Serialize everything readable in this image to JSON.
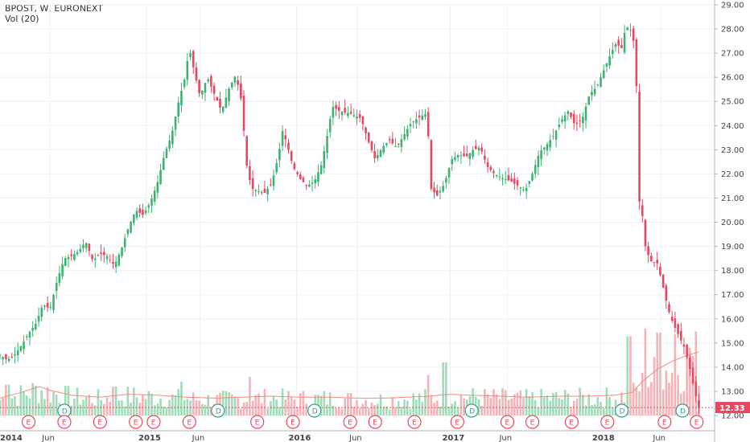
{
  "header": {
    "symbol_line": "BPOST, W, EURONEXT",
    "indicator_line": "Vol (20)"
  },
  "colors": {
    "up": "#3cb371",
    "down": "#e8475f",
    "vol_up": "#9fdcb8",
    "vol_down": "#f5b3b8",
    "vol_ma": "#f08a80",
    "grid": "#eef0f2",
    "price_line": "#e8475f",
    "tag": "#e8475f"
  },
  "current_price": {
    "label": "12.33",
    "value": 12.33
  },
  "chart_data": {
    "type": "candlestick",
    "title": "BPOST, W, EURONEXT",
    "indicator": "Vol (20)",
    "ylim": [
      12.0,
      29.0
    ],
    "y_ticks": [
      "29.00",
      "28.00",
      "27.00",
      "26.00",
      "25.00",
      "24.00",
      "23.00",
      "22.00",
      "21.00",
      "20.00",
      "19.00",
      "18.00",
      "17.00",
      "16.00",
      "15.00",
      "14.00",
      "13.00",
      "12.00"
    ],
    "x_ticks": [
      {
        "label": "2014",
        "bold": true,
        "t": -0.015
      },
      {
        "label": "Jun",
        "bold": false,
        "t": 0.07
      },
      {
        "label": "2015",
        "bold": true,
        "t": 0.205
      },
      {
        "label": "Jun",
        "bold": false,
        "t": 0.28
      },
      {
        "label": "2016",
        "bold": true,
        "t": 0.415
      },
      {
        "label": "Jun",
        "bold": false,
        "t": 0.5
      },
      {
        "label": "2017",
        "bold": true,
        "t": 0.63
      },
      {
        "label": "Jun",
        "bold": false,
        "t": 0.71
      },
      {
        "label": "2018",
        "bold": true,
        "t": 0.84
      },
      {
        "label": "Jun",
        "bold": false,
        "t": 0.925
      }
    ],
    "price_path": [
      [
        0.0,
        14.5
      ],
      [
        0.01,
        14.3
      ],
      [
        0.02,
        14.5
      ],
      [
        0.03,
        14.9
      ],
      [
        0.04,
        15.4
      ],
      [
        0.05,
        15.8
      ],
      [
        0.06,
        16.6
      ],
      [
        0.07,
        16.4
      ],
      [
        0.08,
        17.6
      ],
      [
        0.09,
        18.5
      ],
      [
        0.1,
        18.6
      ],
      [
        0.11,
        18.8
      ],
      [
        0.12,
        19.2
      ],
      [
        0.13,
        18.4
      ],
      [
        0.14,
        18.7
      ],
      [
        0.15,
        18.6
      ],
      [
        0.16,
        18.2
      ],
      [
        0.17,
        18.9
      ],
      [
        0.18,
        19.8
      ],
      [
        0.19,
        20.5
      ],
      [
        0.2,
        20.3
      ],
      [
        0.21,
        20.8
      ],
      [
        0.22,
        21.6
      ],
      [
        0.23,
        22.8
      ],
      [
        0.24,
        23.6
      ],
      [
        0.25,
        25.0
      ],
      [
        0.258,
        25.9
      ],
      [
        0.265,
        27.2
      ],
      [
        0.272,
        26.2
      ],
      [
        0.28,
        25.2
      ],
      [
        0.29,
        26.0
      ],
      [
        0.3,
        25.3
      ],
      [
        0.31,
        24.6
      ],
      [
        0.32,
        25.5
      ],
      [
        0.33,
        26.1
      ],
      [
        0.338,
        25.0
      ],
      [
        0.345,
        22.4
      ],
      [
        0.352,
        21.4
      ],
      [
        0.36,
        21.3
      ],
      [
        0.37,
        21.2
      ],
      [
        0.38,
        21.6
      ],
      [
        0.39,
        22.8
      ],
      [
        0.395,
        23.8
      ],
      [
        0.4,
        23.4
      ],
      [
        0.41,
        22.3
      ],
      [
        0.42,
        21.8
      ],
      [
        0.43,
        21.5
      ],
      [
        0.44,
        21.7
      ],
      [
        0.45,
        22.4
      ],
      [
        0.458,
        23.6
      ],
      [
        0.465,
        24.8
      ],
      [
        0.475,
        24.6
      ],
      [
        0.49,
        24.5
      ],
      [
        0.505,
        24.3
      ],
      [
        0.515,
        23.4
      ],
      [
        0.525,
        22.6
      ],
      [
        0.535,
        23.1
      ],
      [
        0.545,
        23.4
      ],
      [
        0.555,
        23.1
      ],
      [
        0.565,
        23.6
      ],
      [
        0.575,
        24.1
      ],
      [
        0.585,
        24.3
      ],
      [
        0.595,
        24.5
      ],
      [
        0.6,
        23.4
      ],
      [
        0.603,
        21.4
      ],
      [
        0.612,
        21.1
      ],
      [
        0.622,
        21.6
      ],
      [
        0.632,
        22.6
      ],
      [
        0.642,
        22.8
      ],
      [
        0.652,
        22.7
      ],
      [
        0.662,
        23.0
      ],
      [
        0.672,
        23.1
      ],
      [
        0.682,
        22.3
      ],
      [
        0.692,
        22.0
      ],
      [
        0.705,
        21.8
      ],
      [
        0.715,
        21.7
      ],
      [
        0.725,
        21.5
      ],
      [
        0.735,
        21.3
      ],
      [
        0.745,
        22.0
      ],
      [
        0.755,
        22.9
      ],
      [
        0.765,
        23.2
      ],
      [
        0.775,
        23.6
      ],
      [
        0.785,
        24.2
      ],
      [
        0.795,
        24.6
      ],
      [
        0.805,
        24.0
      ],
      [
        0.815,
        24.3
      ],
      [
        0.825,
        25.3
      ],
      [
        0.835,
        25.6
      ],
      [
        0.845,
        26.3
      ],
      [
        0.855,
        27.0
      ],
      [
        0.862,
        27.4
      ],
      [
        0.87,
        27.2
      ],
      [
        0.875,
        28.0
      ],
      [
        0.88,
        28.1
      ],
      [
        0.885,
        27.8
      ],
      [
        0.89,
        26.8
      ],
      [
        0.893,
        21.0
      ],
      [
        0.898,
        20.6
      ],
      [
        0.902,
        19.1
      ],
      [
        0.91,
        18.4
      ],
      [
        0.92,
        18.3
      ],
      [
        0.928,
        17.3
      ],
      [
        0.935,
        16.4
      ],
      [
        0.942,
        15.8
      ],
      [
        0.95,
        15.3
      ],
      [
        0.958,
        14.8
      ],
      [
        0.965,
        14.0
      ],
      [
        0.972,
        13.0
      ],
      [
        0.978,
        12.33
      ]
    ],
    "volume_ma_path": [
      [
        0.0,
        0.18
      ],
      [
        0.03,
        0.24
      ],
      [
        0.055,
        0.3
      ],
      [
        0.07,
        0.26
      ],
      [
        0.1,
        0.21
      ],
      [
        0.14,
        0.19
      ],
      [
        0.18,
        0.22
      ],
      [
        0.22,
        0.21
      ],
      [
        0.26,
        0.19
      ],
      [
        0.3,
        0.18
      ],
      [
        0.34,
        0.19
      ],
      [
        0.38,
        0.2
      ],
      [
        0.42,
        0.19
      ],
      [
        0.46,
        0.19
      ],
      [
        0.5,
        0.18
      ],
      [
        0.54,
        0.18
      ],
      [
        0.57,
        0.19
      ],
      [
        0.6,
        0.2
      ],
      [
        0.63,
        0.22
      ],
      [
        0.66,
        0.21
      ],
      [
        0.7,
        0.2
      ],
      [
        0.74,
        0.19
      ],
      [
        0.78,
        0.2
      ],
      [
        0.82,
        0.2
      ],
      [
        0.86,
        0.21
      ],
      [
        0.885,
        0.24
      ],
      [
        0.9,
        0.36
      ],
      [
        0.92,
        0.48
      ],
      [
        0.94,
        0.56
      ],
      [
        0.96,
        0.62
      ],
      [
        0.978,
        0.66
      ]
    ],
    "volume_spikes": [
      [
        0.01,
        0.32
      ],
      [
        0.16,
        0.3
      ],
      [
        0.255,
        0.35
      ],
      [
        0.35,
        0.4
      ],
      [
        0.6,
        0.42
      ],
      [
        0.623,
        0.55
      ],
      [
        0.88,
        0.82
      ],
      [
        0.903,
        0.9
      ],
      [
        0.922,
        0.86
      ],
      [
        0.945,
        0.84
      ],
      [
        0.965,
        0.7
      ]
    ],
    "events": [
      {
        "type": "E",
        "t": 0.04
      },
      {
        "type": "D",
        "t": 0.09
      },
      {
        "type": "E",
        "t": 0.09
      },
      {
        "type": "E",
        "t": 0.14
      },
      {
        "type": "E",
        "t": 0.19
      },
      {
        "type": "E",
        "t": 0.215
      },
      {
        "type": "E",
        "t": 0.265
      },
      {
        "type": "D",
        "t": 0.305
      },
      {
        "type": "E",
        "t": 0.36
      },
      {
        "type": "E",
        "t": 0.41
      },
      {
        "type": "D",
        "t": 0.44
      },
      {
        "type": "E",
        "t": 0.49
      },
      {
        "type": "E",
        "t": 0.525
      },
      {
        "type": "E",
        "t": 0.58
      },
      {
        "type": "E",
        "t": 0.64
      },
      {
        "type": "D",
        "t": 0.66
      },
      {
        "type": "E",
        "t": 0.71
      },
      {
        "type": "E",
        "t": 0.745
      },
      {
        "type": "E",
        "t": 0.8
      },
      {
        "type": "E",
        "t": 0.85
      },
      {
        "type": "D",
        "t": 0.87
      },
      {
        "type": "E",
        "t": 0.93
      },
      {
        "type": "D",
        "t": 0.955
      },
      {
        "type": "E",
        "t": 0.975
      }
    ]
  }
}
